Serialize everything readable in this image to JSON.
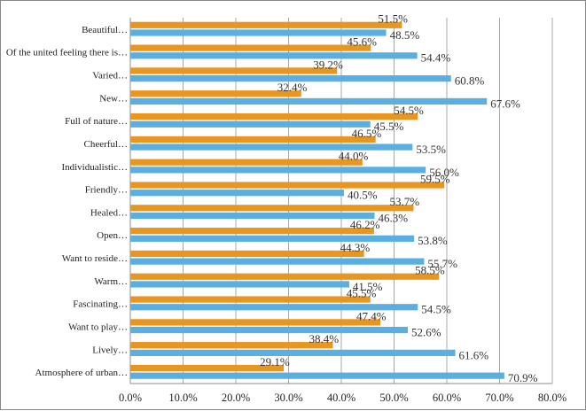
{
  "chart_data": {
    "type": "bar",
    "orientation": "horizontal",
    "categories": [
      "Beautiful",
      "Of the united feeling there is",
      "Varied",
      "New",
      "Full of nature",
      "Cheerful",
      "Individualistic",
      "Friendly",
      "Healed",
      "Open",
      "Want to reside",
      "Warm",
      "Fascinating",
      "Want to play",
      "Lively",
      "Atmosphere of urban"
    ],
    "series": [
      {
        "color": "#E8961F",
        "values": [
          51.5,
          45.6,
          39.2,
          32.4,
          54.5,
          46.5,
          44.0,
          59.5,
          53.7,
          46.2,
          44.3,
          58.5,
          45.5,
          47.4,
          38.4,
          29.1
        ]
      },
      {
        "color": "#5AAFE0",
        "values": [
          48.5,
          54.4,
          60.8,
          67.6,
          45.5,
          53.5,
          56.0,
          40.5,
          46.3,
          53.8,
          55.7,
          41.5,
          54.5,
          52.6,
          61.6,
          70.9
        ]
      }
    ],
    "data_label_suffix": "%",
    "category_label_suffix": "…",
    "xlim": [
      0,
      80
    ],
    "xticks": [
      "0.0%",
      "10.0%",
      "20.0%",
      "30.0%",
      "40.0%",
      "50.0%",
      "60.0%",
      "70.0%",
      "80.0%"
    ],
    "grid": true,
    "legend": "none"
  }
}
